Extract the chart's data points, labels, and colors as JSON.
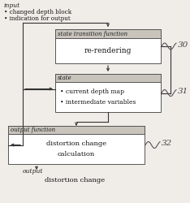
{
  "bg_color": "#f0ede8",
  "box_fill": "#ffffff",
  "box_edge": "#555555",
  "header_fill": "#c8c4bc",
  "title": "",
  "input_label": "input",
  "input_bullets": [
    "changed depth block",
    "indication for output"
  ],
  "box1_header": "state transition function",
  "box1_body": "re-rendering",
  "box1_label": "30",
  "box2_header": "state",
  "box2_bullets": [
    "current depth map",
    "intermediate variables"
  ],
  "box2_label": "31",
  "box3_header": "output function",
  "box3_body": [
    "distortion change",
    "calculation"
  ],
  "box3_label": "32",
  "output_label": "output",
  "output_body": "distortion change"
}
